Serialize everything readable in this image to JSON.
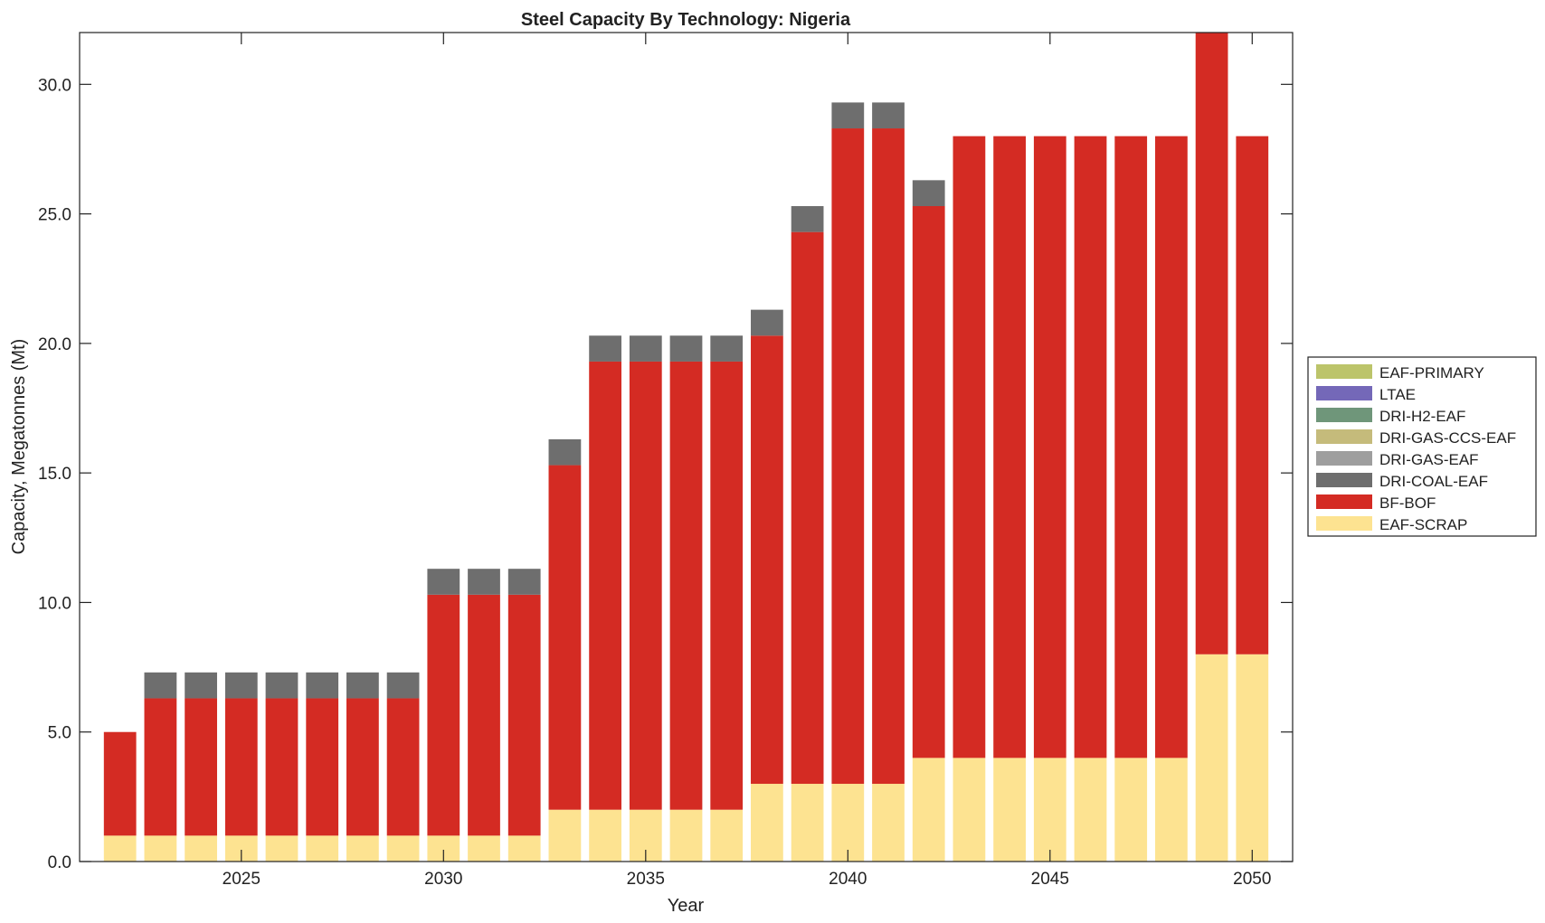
{
  "chart_data": {
    "type": "bar",
    "stacked": true,
    "title": "Steel Capacity By Technology: Nigeria",
    "xlabel": "Year",
    "ylabel": "Capacity, Megatonnes (Mt)",
    "xlim": [
      2021,
      2051
    ],
    "ylim": [
      0,
      32
    ],
    "xticks": [
      2025,
      2030,
      2035,
      2040,
      2045,
      2050
    ],
    "yticks": [
      0,
      5,
      10,
      15,
      20,
      25,
      30
    ],
    "ytick_labels": [
      "0.0",
      "5.0",
      "10.0",
      "15.0",
      "20.0",
      "25.0",
      "30.0"
    ],
    "grid": false,
    "legend_position": "outside-right",
    "categories": [
      2022,
      2023,
      2024,
      2025,
      2026,
      2027,
      2028,
      2029,
      2030,
      2031,
      2032,
      2033,
      2034,
      2035,
      2036,
      2037,
      2038,
      2039,
      2040,
      2041,
      2042,
      2043,
      2044,
      2045,
      2046,
      2047,
      2048,
      2049,
      2050
    ],
    "series": [
      {
        "name": "EAF-SCRAP",
        "color": "#fde391",
        "values": [
          1,
          1,
          1,
          1,
          1,
          1,
          1,
          1,
          1,
          1,
          1,
          2,
          2,
          2,
          2,
          2,
          3,
          3,
          3,
          3,
          4,
          4,
          4,
          4,
          4,
          4,
          4,
          8,
          8
        ]
      },
      {
        "name": "BF-BOF",
        "color": "#d42b23",
        "values": [
          4,
          5.3,
          5.3,
          5.3,
          5.3,
          5.3,
          5.3,
          5.3,
          9.3,
          9.3,
          9.3,
          13.3,
          17.3,
          17.3,
          17.3,
          17.3,
          17.3,
          21.3,
          25.3,
          25.3,
          21.3,
          24,
          24,
          24,
          24,
          24,
          24,
          24,
          20
        ]
      },
      {
        "name": "DRI-COAL-EAF",
        "color": "#6e6e6e",
        "values": [
          0,
          1,
          1,
          1,
          1,
          1,
          1,
          1,
          1,
          1,
          1,
          1,
          1,
          1,
          1,
          1,
          1,
          1,
          1,
          1,
          1,
          0,
          0,
          0,
          0,
          0,
          0,
          0,
          0
        ]
      },
      {
        "name": "DRI-GAS-EAF",
        "color": "#9e9e9e",
        "values": [
          0,
          0,
          0,
          0,
          0,
          0,
          0,
          0,
          0,
          0,
          0,
          0,
          0,
          0,
          0,
          0,
          0,
          0,
          0,
          0,
          0,
          0,
          0,
          0,
          0,
          0,
          0,
          0,
          0
        ]
      },
      {
        "name": "DRI-GAS-CCS-EAF",
        "color": "#c5bb7b",
        "values": [
          0,
          0,
          0,
          0,
          0,
          0,
          0,
          0,
          0,
          0,
          0,
          0,
          0,
          0,
          0,
          0,
          0,
          0,
          0,
          0,
          0,
          0,
          0,
          0,
          0,
          0,
          0,
          0,
          0
        ]
      },
      {
        "name": "DRI-H2-EAF",
        "color": "#6f967a",
        "values": [
          0,
          0,
          0,
          0,
          0,
          0,
          0,
          0,
          0,
          0,
          0,
          0,
          0,
          0,
          0,
          0,
          0,
          0,
          0,
          0,
          0,
          0,
          0,
          0,
          0,
          0,
          0,
          0,
          0
        ]
      },
      {
        "name": "LTAE",
        "color": "#7468b8",
        "values": [
          0,
          0,
          0,
          0,
          0,
          0,
          0,
          0,
          0,
          0,
          0,
          0,
          0,
          0,
          0,
          0,
          0,
          0,
          0,
          0,
          0,
          0,
          0,
          0,
          0,
          0,
          0,
          0,
          0
        ]
      },
      {
        "name": "EAF-PRIMARY",
        "color": "#bcc46a",
        "values": [
          0,
          0,
          0,
          0,
          0,
          0,
          0,
          0,
          0,
          0,
          0,
          0,
          0,
          0,
          0,
          0,
          0,
          0,
          0,
          0,
          0,
          0,
          0,
          0,
          0,
          0,
          0,
          0,
          0
        ]
      }
    ]
  }
}
